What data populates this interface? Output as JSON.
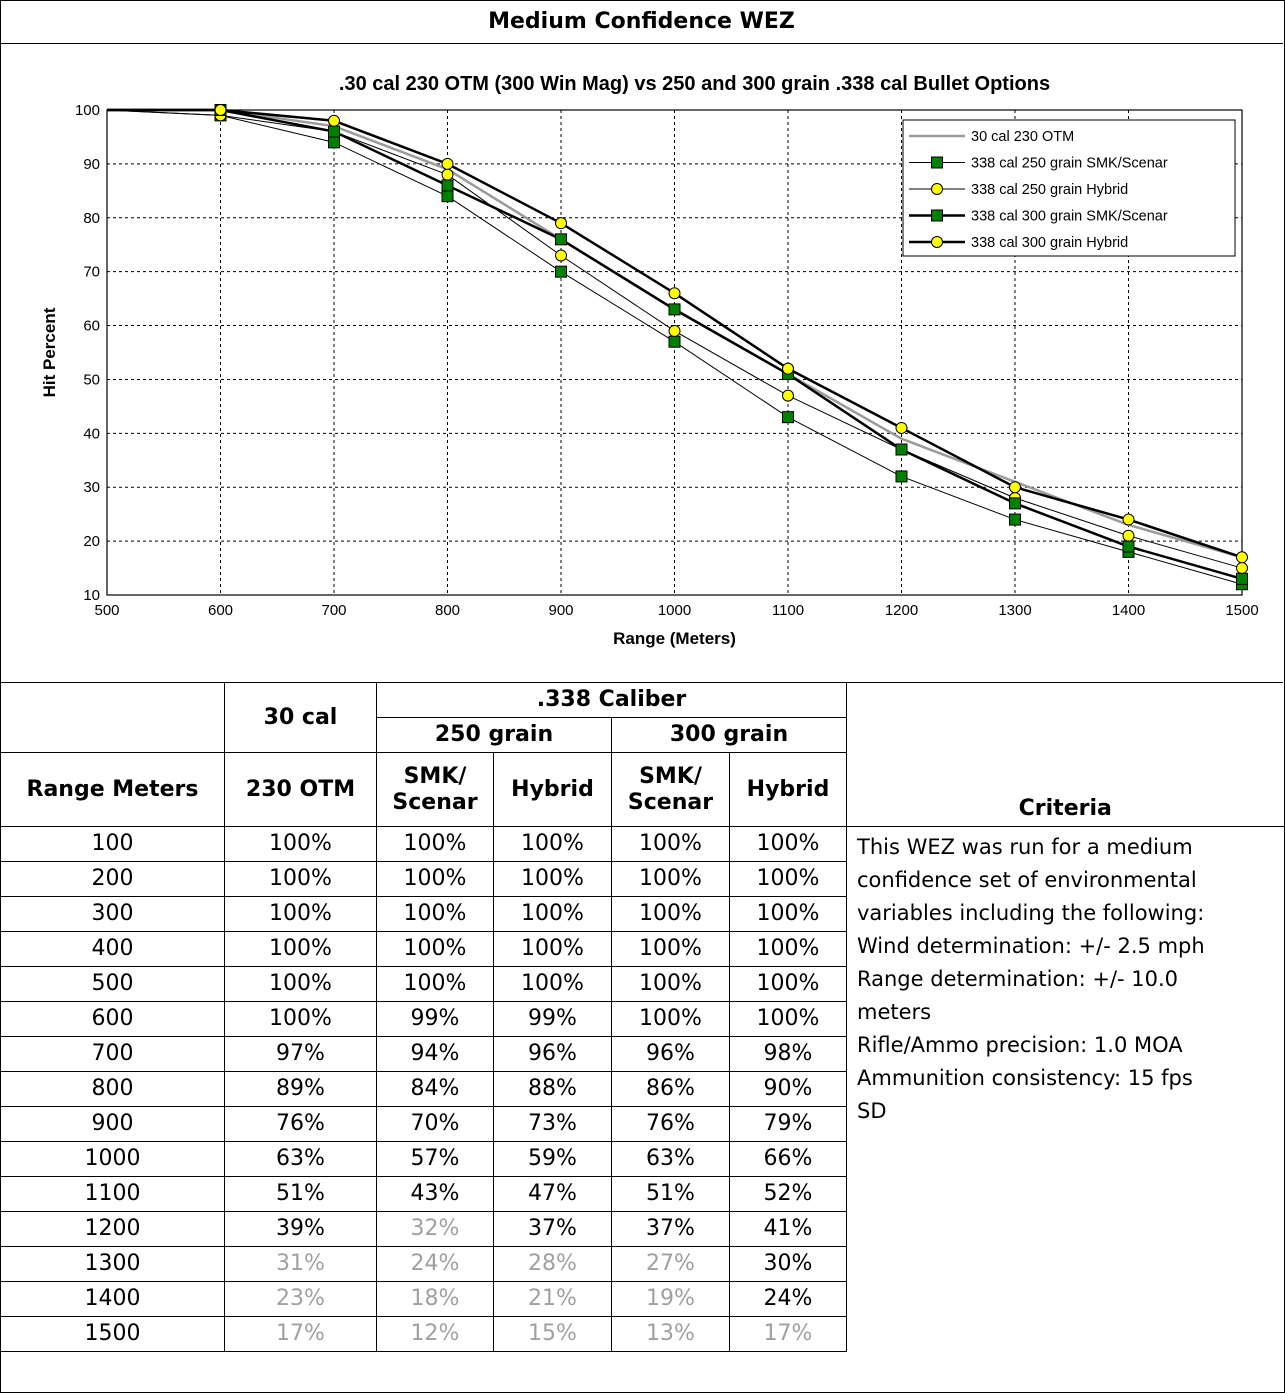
{
  "header": {
    "title": "Medium Confidence WEZ"
  },
  "chart_data": {
    "type": "line",
    "title": ".30 cal 230 OTM (300 Win Mag) vs 250 and 300 grain .338 cal Bullet Options",
    "xlabel": "Range (Meters)",
    "ylabel": "Hit Percent",
    "xlim": [
      500,
      1500
    ],
    "ylim": [
      10,
      100
    ],
    "xticks": [
      "500",
      "600",
      "700",
      "800",
      "900",
      "1000",
      "1100",
      "1200",
      "1300",
      "1400",
      "1500"
    ],
    "yticks": [
      "10",
      "20",
      "30",
      "40",
      "50",
      "60",
      "70",
      "80",
      "90",
      "100"
    ],
    "grid": true,
    "legend_position": "top-right",
    "x": [
      500,
      600,
      700,
      800,
      900,
      1000,
      1100,
      1200,
      1300,
      1400,
      1500
    ],
    "series": [
      {
        "name": "30 cal 230 OTM",
        "values": [
          100,
          100,
          97,
          89,
          76,
          63,
          51,
          39,
          31,
          23,
          17
        ],
        "color": "#9b9b9b",
        "marker": "none",
        "thick": true
      },
      {
        "name": "338 cal 250 grain SMK/Scenar",
        "values": [
          100,
          99,
          94,
          84,
          70,
          57,
          43,
          32,
          24,
          18,
          12
        ],
        "color": "#000000",
        "marker": "square",
        "marker_color": "#008000",
        "thick": false
      },
      {
        "name": "338 cal 250 grain Hybrid",
        "values": [
          100,
          99,
          96,
          88,
          73,
          59,
          47,
          37,
          28,
          21,
          15
        ],
        "color": "#000000",
        "marker": "circle",
        "marker_color": "#ffff00",
        "thick": false
      },
      {
        "name": "338 cal 300 grain SMK/Scenar",
        "values": [
          100,
          100,
          96,
          86,
          76,
          63,
          51,
          37,
          27,
          19,
          13
        ],
        "color": "#000000",
        "marker": "square",
        "marker_color": "#008000",
        "thick": true
      },
      {
        "name": "338 cal 300 grain Hybrid",
        "values": [
          100,
          100,
          98,
          90,
          79,
          66,
          52,
          41,
          30,
          24,
          17
        ],
        "color": "#000000",
        "marker": "circle",
        "marker_color": "#ffff00",
        "thick": true
      }
    ]
  },
  "table": {
    "caliber_30": "30 cal",
    "caliber_338": ".338 Caliber",
    "grain_250": "250 grain",
    "grain_300": "300 grain",
    "col_range": "Range Meters",
    "col_otm": "230 OTM",
    "col_smk_a": "SMK/",
    "col_smk_b": "Scenar",
    "col_hybrid": "Hybrid",
    "rows": [
      [
        "100",
        "100%",
        "100%",
        "100%",
        "100%",
        "100%"
      ],
      [
        "200",
        "100%",
        "100%",
        "100%",
        "100%",
        "100%"
      ],
      [
        "300",
        "100%",
        "100%",
        "100%",
        "100%",
        "100%"
      ],
      [
        "400",
        "100%",
        "100%",
        "100%",
        "100%",
        "100%"
      ],
      [
        "500",
        "100%",
        "100%",
        "100%",
        "100%",
        "100%"
      ],
      [
        "600",
        "100%",
        "99%",
        "99%",
        "100%",
        "100%"
      ],
      [
        "700",
        "97%",
        "94%",
        "96%",
        "96%",
        "98%"
      ],
      [
        "800",
        "89%",
        "84%",
        "88%",
        "86%",
        "90%"
      ],
      [
        "900",
        "76%",
        "70%",
        "73%",
        "76%",
        "79%"
      ],
      [
        "1000",
        "63%",
        "57%",
        "59%",
        "63%",
        "66%"
      ],
      [
        "1100",
        "51%",
        "43%",
        "47%",
        "51%",
        "52%"
      ],
      [
        "1200",
        "39%",
        "32%",
        "37%",
        "37%",
        "41%"
      ],
      [
        "1300",
        "31%",
        "24%",
        "28%",
        "27%",
        "30%"
      ],
      [
        "1400",
        "23%",
        "18%",
        "21%",
        "19%",
        "24%"
      ],
      [
        "1500",
        "17%",
        "12%",
        "15%",
        "13%",
        "17%"
      ]
    ]
  },
  "criteria": {
    "title": "Criteria",
    "lines": [
      "This WEZ was run for a medium",
      "confidence set of environmental",
      "variables including the following:",
      "Wind determination: +/- 2.5 mph",
      "Range determination: +/- 10.0",
      "meters",
      "Rifle/Ammo precision: 1.0 MOA",
      "Ammunition consistency: 15 fps",
      "SD"
    ]
  }
}
